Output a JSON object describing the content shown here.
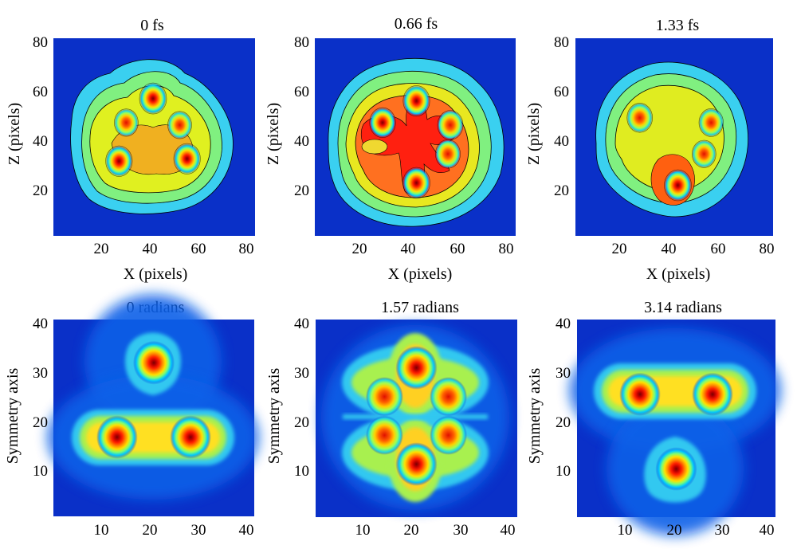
{
  "chart_data": [
    {
      "type": "heatmap",
      "style": "filled-contour",
      "title": "0 fs",
      "xlabel": "X (pixels)",
      "ylabel": "Z (pixels)",
      "xlim": [
        0,
        83
      ],
      "ylim": [
        0,
        82
      ],
      "xticks": [
        "20",
        "40",
        "60",
        "80"
      ],
      "yticks": [
        "20",
        "40",
        "60",
        "80"
      ],
      "colormap": "jet",
      "peaks": [
        {
          "x": 41,
          "y": 57,
          "intensity": 1.0
        },
        {
          "x": 27,
          "y": 31,
          "intensity": 0.95
        },
        {
          "x": 55,
          "y": 32,
          "intensity": 0.95
        },
        {
          "x": 30,
          "y": 47,
          "intensity": 0.7
        },
        {
          "x": 52,
          "y": 46,
          "intensity": 0.7
        }
      ]
    },
    {
      "type": "heatmap",
      "style": "filled-contour",
      "title": "0.66 fs",
      "xlabel": "X (pixels)",
      "ylabel": "Z (pixels)",
      "xlim": [
        0,
        83
      ],
      "ylim": [
        0,
        82
      ],
      "xticks": [
        "20",
        "40",
        "60",
        "80"
      ],
      "yticks": [
        "20",
        "40",
        "60",
        "80"
      ],
      "colormap": "jet",
      "peaks": [
        {
          "x": 42,
          "y": 22,
          "intensity": 1.0
        },
        {
          "x": 42,
          "y": 56,
          "intensity": 0.95
        },
        {
          "x": 28,
          "y": 47,
          "intensity": 0.9
        },
        {
          "x": 56,
          "y": 46,
          "intensity": 0.85
        },
        {
          "x": 55,
          "y": 34,
          "intensity": 0.8
        }
      ]
    },
    {
      "type": "heatmap",
      "style": "filled-contour",
      "title": "1.33 fs",
      "xlabel": "X (pixels)",
      "ylabel": "Z (pixels)",
      "xlim": [
        0,
        83
      ],
      "ylim": [
        0,
        82
      ],
      "xticks": [
        "20",
        "40",
        "60",
        "80"
      ],
      "yticks": [
        "20",
        "40",
        "60",
        "80"
      ],
      "colormap": "jet",
      "peaks": [
        {
          "x": 43,
          "y": 21,
          "intensity": 1.0
        },
        {
          "x": 27,
          "y": 49,
          "intensity": 0.85
        },
        {
          "x": 57,
          "y": 47,
          "intensity": 0.75
        },
        {
          "x": 54,
          "y": 34,
          "intensity": 0.7
        }
      ]
    },
    {
      "type": "heatmap",
      "style": "smooth",
      "title": "0 radians",
      "xlabel": "",
      "ylabel": "Symmetry axis",
      "xlim": [
        0,
        41
      ],
      "ylim": [
        0,
        41
      ],
      "xticks": [
        "10",
        "20",
        "30",
        "40"
      ],
      "yticks": [
        "10",
        "20",
        "30",
        "40"
      ],
      "colormap": "jet",
      "peaks": [
        {
          "x": 20.5,
          "y": 32,
          "intensity": 1.0
        },
        {
          "x": 13,
          "y": 16.5,
          "intensity": 0.98
        },
        {
          "x": 28,
          "y": 16.5,
          "intensity": 0.98
        }
      ]
    },
    {
      "type": "heatmap",
      "style": "smooth",
      "title": "1.57 radians",
      "xlabel": "",
      "ylabel": "Symmetry axis",
      "xlim": [
        0,
        41
      ],
      "ylim": [
        0,
        41
      ],
      "xticks": [
        "10",
        "20",
        "30",
        "40"
      ],
      "yticks": [
        "10",
        "20",
        "30",
        "40"
      ],
      "colormap": "jet",
      "peaks": [
        {
          "x": 20.5,
          "y": 31,
          "intensity": 1.0
        },
        {
          "x": 20.5,
          "y": 11,
          "intensity": 1.0
        },
        {
          "x": 14,
          "y": 25,
          "intensity": 0.75
        },
        {
          "x": 27,
          "y": 25,
          "intensity": 0.75
        },
        {
          "x": 14,
          "y": 17,
          "intensity": 0.75
        },
        {
          "x": 27,
          "y": 17,
          "intensity": 0.75
        }
      ]
    },
    {
      "type": "heatmap",
      "style": "smooth",
      "title": "3.14 radians",
      "xlabel": "",
      "ylabel": "Symmetry axis",
      "xlim": [
        0,
        41
      ],
      "ylim": [
        0,
        41
      ],
      "xticks": [
        "10",
        "20",
        "30",
        "40"
      ],
      "yticks": [
        "10",
        "20",
        "30",
        "40"
      ],
      "colormap": "jet",
      "peaks": [
        {
          "x": 13,
          "y": 25.5,
          "intensity": 0.98
        },
        {
          "x": 28,
          "y": 25.5,
          "intensity": 0.98
        },
        {
          "x": 20.5,
          "y": 10,
          "intensity": 1.0
        }
      ]
    }
  ]
}
